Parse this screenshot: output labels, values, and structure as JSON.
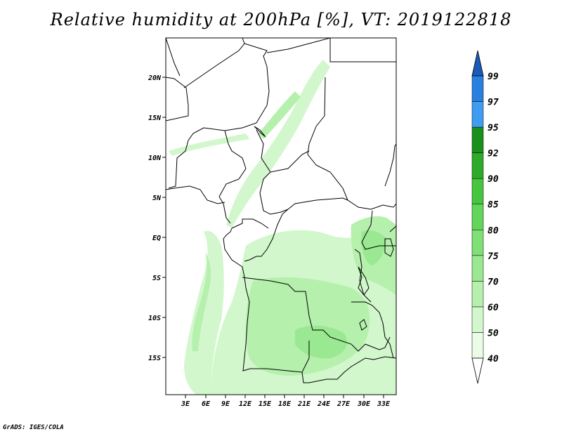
{
  "title": "Relative humidity at 200hPa [%], VT: 2019122818",
  "credit": "GrADS: IGES/COLA",
  "map": {
    "lat_ticks": [
      "20N",
      "15N",
      "10N",
      "5N",
      "EQ",
      "5S",
      "10S",
      "15S"
    ],
    "lon_ticks": [
      "3E",
      "6E",
      "9E",
      "12E",
      "15E",
      "18E",
      "21E",
      "24E",
      "27E",
      "30E",
      "33E"
    ],
    "lon_range": [
      0.5,
      34.5
    ],
    "lat_range": [
      -20,
      24
    ],
    "variable": "Relative humidity",
    "level": "200hPa",
    "valid_time": "2019122818"
  },
  "colorbar": {
    "levels": [
      "40",
      "50",
      "60",
      "70",
      "75",
      "80",
      "85",
      "90",
      "92",
      "95",
      "97",
      "99"
    ],
    "colors": [
      "#eafce6",
      "#d2f7cc",
      "#b5f0ad",
      "#9ae891",
      "#7ee075",
      "#62d65a",
      "#46c63f",
      "#2eaa2b",
      "#1a8f1a",
      "#3f9cf0",
      "#2a80e0",
      "#1a66c8"
    ],
    "top_arrow_color": "#1a5ab8"
  }
}
